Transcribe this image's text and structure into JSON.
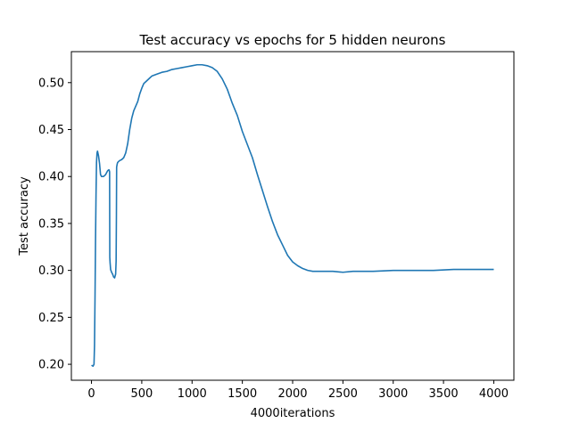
{
  "chart_data": {
    "type": "line",
    "title": "Test accuracy vs epochs for 5 hidden neurons",
    "xlabel": "4000iterations",
    "ylabel": "Test accuracy",
    "xlim": [
      -200,
      4200
    ],
    "ylim": [
      0.183,
      0.533
    ],
    "xticks": [
      0,
      500,
      1000,
      1500,
      2000,
      2500,
      3000,
      3500,
      4000
    ],
    "yticks": [
      0.2,
      0.25,
      0.3,
      0.35,
      0.4,
      0.45,
      0.5
    ],
    "ytick_labels": [
      "0.20",
      "0.25",
      "0.30",
      "0.35",
      "0.40",
      "0.45",
      "0.50"
    ],
    "grid": false,
    "legend": "none",
    "line_color": "#1f77b4",
    "series": [
      {
        "x": [
          0,
          15,
          25,
          30,
          35,
          40,
          45,
          50,
          55,
          60,
          70,
          80,
          90,
          100,
          110,
          120,
          130,
          140,
          150,
          160,
          170,
          175,
          180,
          182,
          185,
          190,
          200,
          210,
          220,
          230,
          240,
          245,
          248,
          250,
          255,
          260,
          270,
          280,
          300,
          320,
          340,
          360,
          380,
          400,
          420,
          440,
          460,
          480,
          500,
          520,
          540,
          560,
          580,
          600,
          650,
          700,
          750,
          800,
          850,
          900,
          950,
          1000,
          1050,
          1100,
          1150,
          1200,
          1250,
          1300,
          1350,
          1400,
          1450,
          1500,
          1550,
          1600,
          1650,
          1700,
          1750,
          1800,
          1850,
          1900,
          1950,
          2000,
          2050,
          2100,
          2150,
          2200,
          2300,
          2400,
          2500,
          2600,
          2700,
          2800,
          3000,
          3200,
          3400,
          3600,
          3800,
          4000
        ],
        "y": [
          0.199,
          0.198,
          0.2,
          0.22,
          0.27,
          0.33,
          0.38,
          0.415,
          0.425,
          0.427,
          0.422,
          0.414,
          0.402,
          0.4,
          0.4,
          0.4,
          0.401,
          0.402,
          0.404,
          0.406,
          0.407,
          0.407,
          0.405,
          0.314,
          0.308,
          0.301,
          0.298,
          0.296,
          0.293,
          0.292,
          0.296,
          0.31,
          0.36,
          0.41,
          0.413,
          0.415,
          0.416,
          0.417,
          0.418,
          0.42,
          0.425,
          0.435,
          0.45,
          0.462,
          0.47,
          0.475,
          0.48,
          0.488,
          0.494,
          0.499,
          0.501,
          0.503,
          0.505,
          0.507,
          0.509,
          0.511,
          0.512,
          0.514,
          0.515,
          0.516,
          0.517,
          0.518,
          0.519,
          0.519,
          0.518,
          0.516,
          0.512,
          0.504,
          0.493,
          0.478,
          0.465,
          0.448,
          0.434,
          0.42,
          0.402,
          0.385,
          0.368,
          0.352,
          0.338,
          0.327,
          0.316,
          0.309,
          0.305,
          0.302,
          0.3,
          0.299,
          0.299,
          0.299,
          0.298,
          0.299,
          0.299,
          0.299,
          0.3,
          0.3,
          0.3,
          0.301,
          0.301,
          0.301
        ]
      }
    ]
  }
}
